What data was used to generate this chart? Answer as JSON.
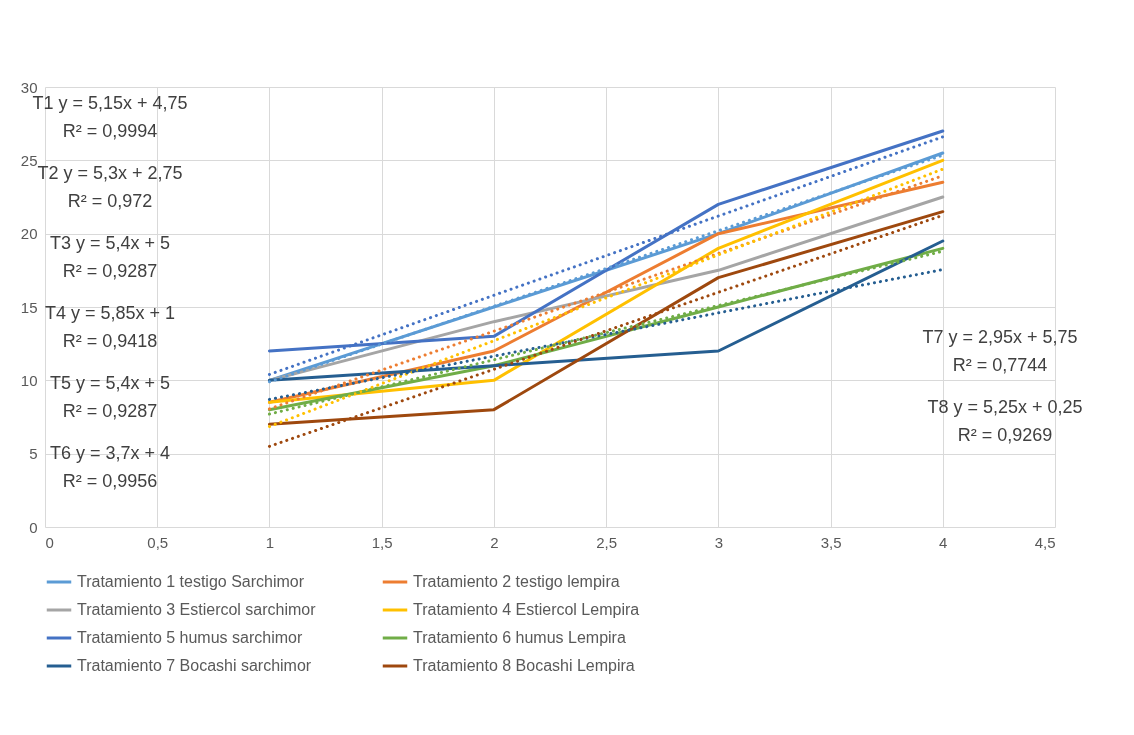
{
  "chart_data": {
    "type": "line",
    "x": [
      1,
      2,
      3,
      4
    ],
    "xlim": [
      0,
      4.5
    ],
    "xticks": [
      0,
      {
        "value": 0.5,
        "label": "0,5"
      },
      1,
      {
        "value": 1.5,
        "label": "1,5"
      },
      2,
      {
        "value": 2.5,
        "label": "2,5"
      },
      3,
      {
        "value": 3.5,
        "label": "3,5"
      },
      4,
      {
        "value": 4.5,
        "label": "4,5"
      }
    ],
    "ylim": [
      0,
      30
    ],
    "yticks": [
      0,
      5,
      10,
      15,
      20,
      25,
      30
    ],
    "grid": true,
    "legend": "bottom",
    "marker": "none",
    "line_style": "solid",
    "series": [
      {
        "name": "Tratamiento 1 testigo Sarchimor",
        "color": "#5b9bd5",
        "values": [
          10,
          15,
          20,
          25.5
        ]
      },
      {
        "name": "Tratamiento 2 testigo lempira",
        "color": "#ed7d31",
        "values": [
          8.5,
          12,
          20,
          23.5
        ]
      },
      {
        "name": "Tratamiento 3 Estiercol sarchimor",
        "color": "#a5a5a5",
        "values": [
          10,
          14,
          17.5,
          22.5
        ]
      },
      {
        "name": "Tratamiento 4 Estiercol Lempira",
        "color": "#ffc000",
        "values": [
          8.5,
          10,
          19,
          25
        ]
      },
      {
        "name": "Tratamiento 5 humus sarchimor",
        "color": "#4472c4",
        "values": [
          12,
          13,
          22,
          27
        ]
      },
      {
        "name": "Tratamiento 6 humus Lempira",
        "color": "#70ad47",
        "values": [
          8,
          11,
          15,
          19
        ]
      },
      {
        "name": "Tratamiento 7 Bocashi sarchimor",
        "color": "#255e91",
        "values": [
          10,
          11,
          12,
          19.5
        ]
      },
      {
        "name": "Tratamiento 8 Bocashi Lempira",
        "color": "#9e480e",
        "values": [
          7,
          8,
          17,
          21.5
        ]
      },
      {
        "type": "line",
        "line_style": "dotted",
        "color": "#5b9bd5",
        "values": [
          9.9,
          15.05,
          20.2,
          25.35
        ]
      },
      {
        "type": "line",
        "line_style": "dotted",
        "color": "#ed7d31",
        "values": [
          8.05,
          13.35,
          18.65,
          23.95
        ]
      },
      {
        "type": "line",
        "line_style": "dotted",
        "color": "#ffc000",
        "values": [
          6.85,
          12.7,
          18.55,
          24.4
        ]
      },
      {
        "type": "line",
        "line_style": "dotted",
        "color": "#4472c4",
        "values": [
          10.4,
          15.8,
          21.2,
          26.6
        ]
      },
      {
        "type": "line",
        "line_style": "dotted",
        "color": "#70ad47",
        "values": [
          7.7,
          11.4,
          15.1,
          18.8
        ]
      },
      {
        "type": "line",
        "line_style": "dotted",
        "color": "#255e91",
        "values": [
          8.7,
          11.65,
          14.6,
          17.55
        ]
      },
      {
        "type": "line",
        "line_style": "dotted",
        "color": "#9e480e",
        "values": [
          5.5,
          10.75,
          16,
          21.25
        ]
      }
    ],
    "annotations": [
      "T1 y = 5,15x + 4,75\nR² = 0,9994",
      "T2 y = 5,3x + 2,75\nR² = 0,972",
      "T3 y = 5,4x + 5\nR² = 0,9287",
      "T4 y = 5,85x + 1\nR² = 0,9418",
      "T5 y = 5,4x + 5\nR² = 0,9287",
      "T6 y = 3,7x + 4\nR² = 0,9956",
      "T7 y = 2,95x + 5,75\nR² = 0,7744",
      "T8 y = 5,25x + 0,25\nR² = 0,9269"
    ]
  }
}
